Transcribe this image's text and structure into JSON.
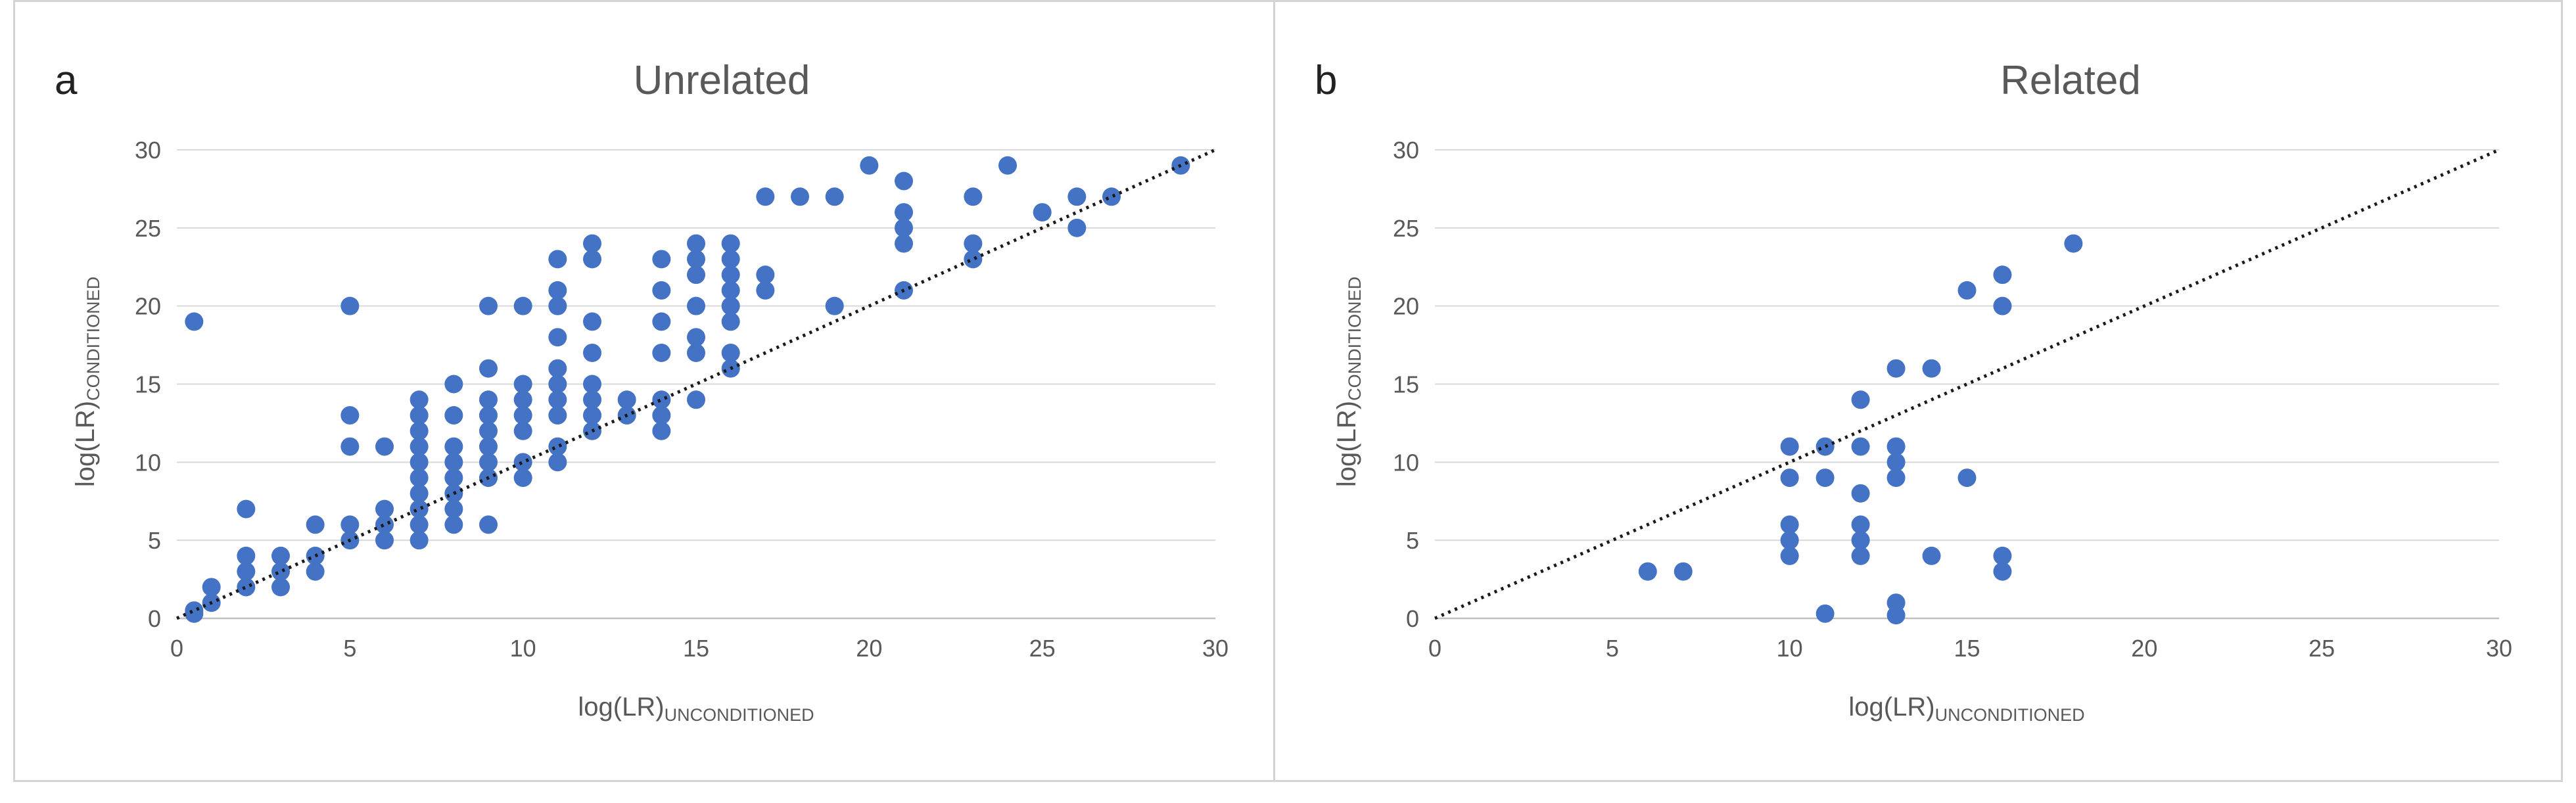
{
  "chart_data": [
    {
      "type": "scatter",
      "panel_label": "a",
      "title": "Unrelated",
      "xlabel": "log(LR)",
      "xlabel_sub": "UNCONDITIONED",
      "ylabel": "log(LR)",
      "ylabel_sub": "CONDITIONED",
      "xlim": [
        0,
        30
      ],
      "ylim": [
        0,
        30
      ],
      "xticks": [
        0,
        5,
        10,
        15,
        20,
        25,
        30
      ],
      "yticks": [
        0,
        5,
        10,
        15,
        20,
        25,
        30
      ],
      "grid": true,
      "reference_line": {
        "style": "dotted",
        "from": [
          0,
          0
        ],
        "to": [
          30,
          30
        ]
      },
      "series": [
        {
          "name": "Unrelated",
          "color": "#4472c4",
          "points": [
            [
              0.5,
              19
            ],
            [
              0.5,
              0.3
            ],
            [
              0.5,
              0.5
            ],
            [
              1,
              1
            ],
            [
              1,
              2
            ],
            [
              2,
              7
            ],
            [
              2,
              4
            ],
            [
              2,
              3
            ],
            [
              2,
              2
            ],
            [
              3,
              4
            ],
            [
              3,
              3
            ],
            [
              3,
              2
            ],
            [
              4,
              6
            ],
            [
              4,
              4
            ],
            [
              4,
              3
            ],
            [
              5,
              20
            ],
            [
              5,
              13
            ],
            [
              5,
              11
            ],
            [
              5,
              6
            ],
            [
              5,
              5
            ],
            [
              6,
              11
            ],
            [
              6,
              7
            ],
            [
              6,
              6
            ],
            [
              6,
              5
            ],
            [
              7,
              14
            ],
            [
              7,
              13
            ],
            [
              7,
              12
            ],
            [
              7,
              11
            ],
            [
              7,
              10
            ],
            [
              7,
              9
            ],
            [
              7,
              8
            ],
            [
              7,
              7
            ],
            [
              7,
              6
            ],
            [
              7,
              5
            ],
            [
              8,
              15
            ],
            [
              8,
              13
            ],
            [
              8,
              11
            ],
            [
              8,
              10
            ],
            [
              8,
              9
            ],
            [
              8,
              8
            ],
            [
              8,
              7
            ],
            [
              8,
              6
            ],
            [
              9,
              20
            ],
            [
              9,
              16
            ],
            [
              9,
              14
            ],
            [
              9,
              13
            ],
            [
              9,
              12
            ],
            [
              9,
              11
            ],
            [
              9,
              10
            ],
            [
              9,
              9
            ],
            [
              9,
              6
            ],
            [
              10,
              20
            ],
            [
              10,
              15
            ],
            [
              10,
              14
            ],
            [
              10,
              13
            ],
            [
              10,
              12
            ],
            [
              10,
              10
            ],
            [
              10,
              9
            ],
            [
              11,
              23
            ],
            [
              11,
              21
            ],
            [
              11,
              20
            ],
            [
              11,
              18
            ],
            [
              11,
              16
            ],
            [
              11,
              15
            ],
            [
              11,
              14
            ],
            [
              11,
              13
            ],
            [
              11,
              11
            ],
            [
              11,
              10
            ],
            [
              12,
              24
            ],
            [
              12,
              23
            ],
            [
              12,
              19
            ],
            [
              12,
              17
            ],
            [
              12,
              15
            ],
            [
              12,
              14
            ],
            [
              12,
              13
            ],
            [
              12,
              12
            ],
            [
              13,
              14
            ],
            [
              13,
              13
            ],
            [
              14,
              23
            ],
            [
              14,
              21
            ],
            [
              14,
              19
            ],
            [
              14,
              17
            ],
            [
              14,
              14
            ],
            [
              14,
              13
            ],
            [
              14,
              12
            ],
            [
              15,
              24
            ],
            [
              15,
              23
            ],
            [
              15,
              22
            ],
            [
              15,
              20
            ],
            [
              15,
              18
            ],
            [
              15,
              17
            ],
            [
              15,
              14
            ],
            [
              16,
              24
            ],
            [
              16,
              23
            ],
            [
              16,
              22
            ],
            [
              16,
              21
            ],
            [
              16,
              20
            ],
            [
              16,
              19
            ],
            [
              16,
              17
            ],
            [
              16,
              16
            ],
            [
              17,
              27
            ],
            [
              17,
              22
            ],
            [
              17,
              21
            ],
            [
              18,
              27
            ],
            [
              19,
              27
            ],
            [
              19,
              20
            ],
            [
              20,
              29
            ],
            [
              21,
              28
            ],
            [
              21,
              26
            ],
            [
              21,
              25
            ],
            [
              21,
              24
            ],
            [
              21,
              21
            ],
            [
              23,
              27
            ],
            [
              23,
              24
            ],
            [
              23,
              23
            ],
            [
              24,
              29
            ],
            [
              25,
              26
            ],
            [
              26,
              27
            ],
            [
              26,
              25
            ],
            [
              27,
              27
            ],
            [
              29,
              29
            ]
          ]
        }
      ]
    },
    {
      "type": "scatter",
      "panel_label": "b",
      "title": "Related",
      "xlabel": "log(LR)",
      "xlabel_sub": "UNCONDITIONED",
      "ylabel": "log(LR)",
      "ylabel_sub": "CONDITIONED",
      "xlim": [
        0,
        30
      ],
      "ylim": [
        0,
        30
      ],
      "xticks": [
        0,
        5,
        10,
        15,
        20,
        25,
        30
      ],
      "yticks": [
        0,
        5,
        10,
        15,
        20,
        25,
        30
      ],
      "grid": true,
      "reference_line": {
        "style": "dotted",
        "from": [
          0,
          0
        ],
        "to": [
          30,
          30
        ]
      },
      "series": [
        {
          "name": "Related",
          "color": "#4472c4",
          "points": [
            [
              6,
              3
            ],
            [
              7,
              3
            ],
            [
              10,
              11
            ],
            [
              10,
              9
            ],
            [
              10,
              6
            ],
            [
              10,
              5
            ],
            [
              10,
              4
            ],
            [
              11,
              11
            ],
            [
              11,
              9
            ],
            [
              11,
              0.3
            ],
            [
              12,
              14
            ],
            [
              12,
              11
            ],
            [
              12,
              8
            ],
            [
              12,
              6
            ],
            [
              12,
              5
            ],
            [
              12,
              4
            ],
            [
              13,
              16
            ],
            [
              13,
              11
            ],
            [
              13,
              10
            ],
            [
              13,
              9
            ],
            [
              13,
              1
            ],
            [
              13,
              0.2
            ],
            [
              14,
              16
            ],
            [
              14,
              4
            ],
            [
              15,
              21
            ],
            [
              15,
              9
            ],
            [
              16,
              22
            ],
            [
              16,
              20
            ],
            [
              16,
              4
            ],
            [
              16,
              3
            ],
            [
              18,
              24
            ]
          ]
        }
      ]
    }
  ]
}
